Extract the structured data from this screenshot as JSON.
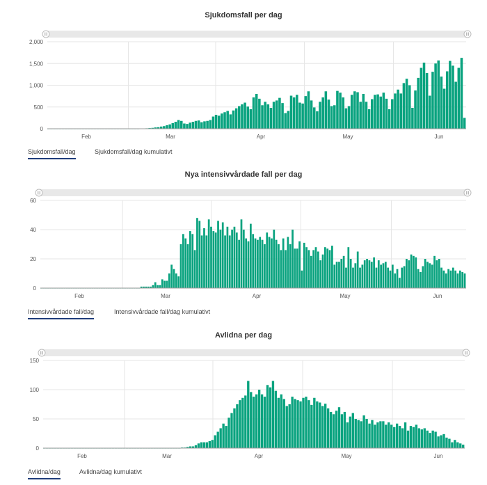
{
  "colors": {
    "bar": "#0aa37f",
    "grid": "#e6e6e6",
    "axis": "#999999",
    "scrollbar": "#e8e8e8",
    "tab_underline": "#1f3d7a"
  },
  "panels": [
    {
      "title": "Sjukdomsfall per dag",
      "tabs": [
        "Sjukdomsfall/dag",
        "Sjukdomsfall/dag kumulativt"
      ],
      "active_tab": 0
    },
    {
      "title": "Nya intensivvårdade fall per dag",
      "tabs": [
        "Intensivvårdade fall/dag",
        "Intensivvårdade fall/dag kumulativt"
      ],
      "active_tab": 0
    },
    {
      "title": "Avlidna per dag",
      "tabs": [
        "Avlidna/dag",
        "Avlidna/dag kumulativt"
      ],
      "active_tab": 0
    }
  ],
  "chart_data": [
    {
      "type": "bar",
      "title": "Sjukdomsfall per dag",
      "x_tick_labels": [
        "Feb",
        "Mar",
        "Apr",
        "May",
        "Jun"
      ],
      "y_tick_labels": [
        "0",
        "500",
        "1,000",
        "1,500",
        "2,000"
      ],
      "ylim": [
        0,
        2000
      ],
      "grid": true,
      "start_date": "2020-01-24",
      "values": [
        0,
        0,
        0,
        0,
        0,
        0,
        0,
        0,
        0,
        0,
        0,
        0,
        0,
        0,
        0,
        0,
        0,
        0,
        0,
        0,
        0,
        0,
        0,
        0,
        0,
        0,
        0,
        0,
        0,
        0,
        0,
        0,
        5,
        5,
        10,
        15,
        20,
        30,
        35,
        50,
        60,
        80,
        100,
        130,
        160,
        200,
        180,
        120,
        110,
        140,
        160,
        180,
        190,
        150,
        170,
        180,
        200,
        280,
        320,
        300,
        350,
        380,
        410,
        330,
        420,
        470,
        520,
        560,
        600,
        510,
        450,
        720,
        800,
        690,
        540,
        620,
        560,
        480,
        620,
        650,
        710,
        590,
        360,
        410,
        760,
        720,
        780,
        600,
        580,
        750,
        860,
        650,
        490,
        400,
        620,
        720,
        860,
        670,
        520,
        540,
        870,
        830,
        720,
        470,
        520,
        780,
        860,
        840,
        620,
        800,
        620,
        450,
        680,
        780,
        790,
        740,
        830,
        690,
        450,
        680,
        810,
        900,
        810,
        1050,
        1150,
        1000,
        480,
        880,
        1170,
        1400,
        1520,
        1280,
        760,
        1310,
        1500,
        1570,
        1200,
        920,
        1320,
        1560,
        1450,
        1080,
        1400,
        1630,
        250
      ]
    },
    {
      "type": "bar",
      "title": "Nya intensivvårdade fall per dag",
      "x_tick_labels": [
        "Feb",
        "Mar",
        "Apr",
        "May",
        "Jun"
      ],
      "y_tick_labels": [
        "0",
        "20",
        "40",
        "60"
      ],
      "ylim": [
        0,
        60
      ],
      "grid": true,
      "start_date": "2020-01-24",
      "values": [
        0,
        0,
        0,
        0,
        0,
        0,
        0,
        0,
        0,
        0,
        0,
        0,
        0,
        0,
        0,
        0,
        0,
        0,
        0,
        0,
        0,
        0,
        0,
        0,
        0,
        0,
        0,
        0,
        0,
        0,
        0,
        0,
        0,
        0,
        0,
        0,
        0,
        0,
        0,
        0,
        0,
        0,
        0,
        1,
        1,
        1,
        1,
        1,
        2,
        4,
        2,
        2,
        6,
        5,
        5,
        10,
        16,
        13,
        10,
        8,
        30,
        37,
        34,
        30,
        39,
        37,
        26,
        48,
        46,
        36,
        41,
        36,
        47,
        42,
        39,
        38,
        46,
        40,
        45,
        36,
        42,
        36,
        40,
        42,
        38,
        33,
        47,
        40,
        34,
        32,
        44,
        37,
        34,
        33,
        35,
        33,
        30,
        38,
        35,
        34,
        40,
        33,
        30,
        26,
        34,
        26,
        35,
        30,
        40,
        27,
        27,
        32,
        12,
        31,
        28,
        26,
        22,
        26,
        28,
        25,
        19,
        23,
        28,
        27,
        26,
        29,
        16,
        18,
        18,
        20,
        22,
        14,
        28,
        20,
        14,
        17,
        25,
        14,
        16,
        19,
        20,
        19,
        18,
        21,
        14,
        19,
        16,
        17,
        18,
        14,
        12,
        16,
        10,
        13,
        7,
        14,
        15,
        20,
        19,
        23,
        22,
        21,
        13,
        11,
        15,
        20,
        18,
        17,
        16,
        22,
        19,
        20,
        14,
        12,
        10,
        13,
        12,
        14,
        12,
        10,
        12,
        11,
        10
      ]
    },
    {
      "type": "bar",
      "title": "Avlidna per dag",
      "x_tick_labels": [
        "Feb",
        "Mar",
        "Apr",
        "May",
        "Jun"
      ],
      "y_tick_labels": [
        "0",
        "50",
        "100",
        "150"
      ],
      "ylim": [
        0,
        150
      ],
      "grid": true,
      "start_date": "2020-01-24",
      "values": [
        0,
        0,
        0,
        0,
        0,
        0,
        0,
        0,
        0,
        0,
        0,
        0,
        0,
        0,
        0,
        0,
        0,
        0,
        0,
        0,
        0,
        0,
        0,
        0,
        0,
        0,
        0,
        0,
        0,
        0,
        0,
        0,
        0,
        0,
        0,
        0,
        0,
        0,
        0,
        0,
        0,
        0,
        0,
        0,
        0,
        0,
        0,
        0,
        0,
        0,
        1,
        1,
        2,
        3,
        3,
        5,
        8,
        10,
        10,
        10,
        12,
        14,
        22,
        28,
        34,
        42,
        38,
        52,
        60,
        68,
        75,
        82,
        86,
        90,
        115,
        96,
        88,
        92,
        100,
        92,
        88,
        108,
        104,
        115,
        98,
        86,
        92,
        84,
        72,
        75,
        88,
        84,
        82,
        80,
        86,
        88,
        82,
        74,
        86,
        80,
        78,
        72,
        76,
        68,
        62,
        58,
        64,
        70,
        58,
        62,
        44,
        54,
        60,
        50,
        48,
        46,
        56,
        50,
        42,
        48,
        40,
        44,
        46,
        46,
        40,
        44,
        40,
        36,
        42,
        38,
        34,
        44,
        30,
        38,
        36,
        40,
        34,
        32,
        34,
        30,
        26,
        30,
        28,
        20,
        22,
        24,
        18,
        16,
        10,
        14,
        10,
        8,
        6
      ]
    }
  ]
}
